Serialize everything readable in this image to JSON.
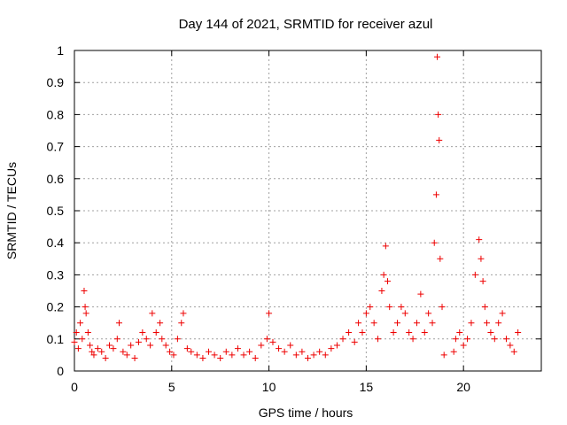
{
  "chart_data": {
    "type": "scatter",
    "title": "Day 144 of 2021, SRMTID for receiver azul",
    "xlabel": "GPS time / hours",
    "ylabel": "SRMTID / TECUs",
    "xlim": [
      0,
      24
    ],
    "ylim": [
      0,
      1
    ],
    "xticks": [
      0,
      5,
      10,
      15,
      20
    ],
    "xtick_labels": [
      "0",
      "5",
      "10",
      "15",
      "20"
    ],
    "yticks": [
      0,
      0.1,
      0.2,
      0.3,
      0.4,
      0.5,
      0.6,
      0.7,
      0.8,
      0.9,
      1
    ],
    "ytick_labels": [
      "0",
      "0.1",
      "0.2",
      "0.3",
      "0.4",
      "0.5",
      "0.6",
      "0.7",
      "0.8",
      "0.9",
      "1"
    ],
    "grid": true,
    "marker": "plus",
    "color": "#ee0000",
    "series": [
      {
        "name": "SRMTID",
        "x": [
          0.0,
          0.1,
          0.2,
          0.3,
          0.4,
          0.5,
          0.55,
          0.6,
          0.7,
          0.8,
          0.9,
          1.0,
          1.2,
          1.4,
          1.6,
          1.8,
          2.0,
          2.2,
          2.3,
          2.5,
          2.7,
          2.9,
          3.1,
          3.3,
          3.5,
          3.7,
          3.9,
          4.0,
          4.2,
          4.4,
          4.5,
          4.7,
          4.9,
          5.1,
          5.3,
          5.5,
          5.6,
          5.8,
          6.0,
          6.3,
          6.6,
          6.9,
          7.2,
          7.5,
          7.8,
          8.1,
          8.4,
          8.7,
          9.0,
          9.3,
          9.6,
          9.9,
          10.0,
          10.2,
          10.5,
          10.8,
          11.1,
          11.4,
          11.7,
          12.0,
          12.3,
          12.6,
          12.9,
          13.2,
          13.5,
          13.8,
          14.1,
          14.4,
          14.6,
          14.8,
          15.0,
          15.2,
          15.4,
          15.6,
          15.8,
          15.9,
          16.0,
          16.1,
          16.2,
          16.4,
          16.6,
          16.8,
          17.0,
          17.2,
          17.4,
          17.6,
          17.8,
          18.0,
          18.2,
          18.4,
          18.5,
          18.6,
          18.65,
          18.7,
          18.75,
          18.8,
          18.9,
          19.0,
          19.5,
          19.6,
          19.8,
          20.0,
          20.2,
          20.4,
          20.6,
          20.8,
          20.9,
          21.0,
          21.1,
          21.2,
          21.4,
          21.6,
          21.8,
          22.0,
          22.2,
          22.4,
          22.6,
          22.8
        ],
        "y": [
          0.09,
          0.12,
          0.07,
          0.15,
          0.1,
          0.25,
          0.2,
          0.18,
          0.12,
          0.08,
          0.06,
          0.05,
          0.07,
          0.06,
          0.04,
          0.08,
          0.07,
          0.1,
          0.15,
          0.06,
          0.05,
          0.08,
          0.04,
          0.09,
          0.12,
          0.1,
          0.08,
          0.18,
          0.12,
          0.15,
          0.1,
          0.08,
          0.06,
          0.05,
          0.1,
          0.15,
          0.18,
          0.07,
          0.06,
          0.05,
          0.04,
          0.06,
          0.05,
          0.04,
          0.06,
          0.05,
          0.07,
          0.05,
          0.06,
          0.04,
          0.08,
          0.1,
          0.18,
          0.09,
          0.07,
          0.06,
          0.08,
          0.05,
          0.06,
          0.04,
          0.05,
          0.06,
          0.05,
          0.07,
          0.08,
          0.1,
          0.12,
          0.09,
          0.15,
          0.12,
          0.18,
          0.2,
          0.15,
          0.1,
          0.25,
          0.3,
          0.39,
          0.28,
          0.2,
          0.12,
          0.15,
          0.2,
          0.18,
          0.12,
          0.1,
          0.15,
          0.24,
          0.12,
          0.18,
          0.15,
          0.4,
          0.55,
          0.98,
          0.8,
          0.72,
          0.35,
          0.2,
          0.05,
          0.06,
          0.1,
          0.12,
          0.08,
          0.1,
          0.15,
          0.3,
          0.41,
          0.35,
          0.28,
          0.2,
          0.15,
          0.12,
          0.1,
          0.15,
          0.18,
          0.1,
          0.08,
          0.06,
          0.12
        ]
      }
    ]
  }
}
